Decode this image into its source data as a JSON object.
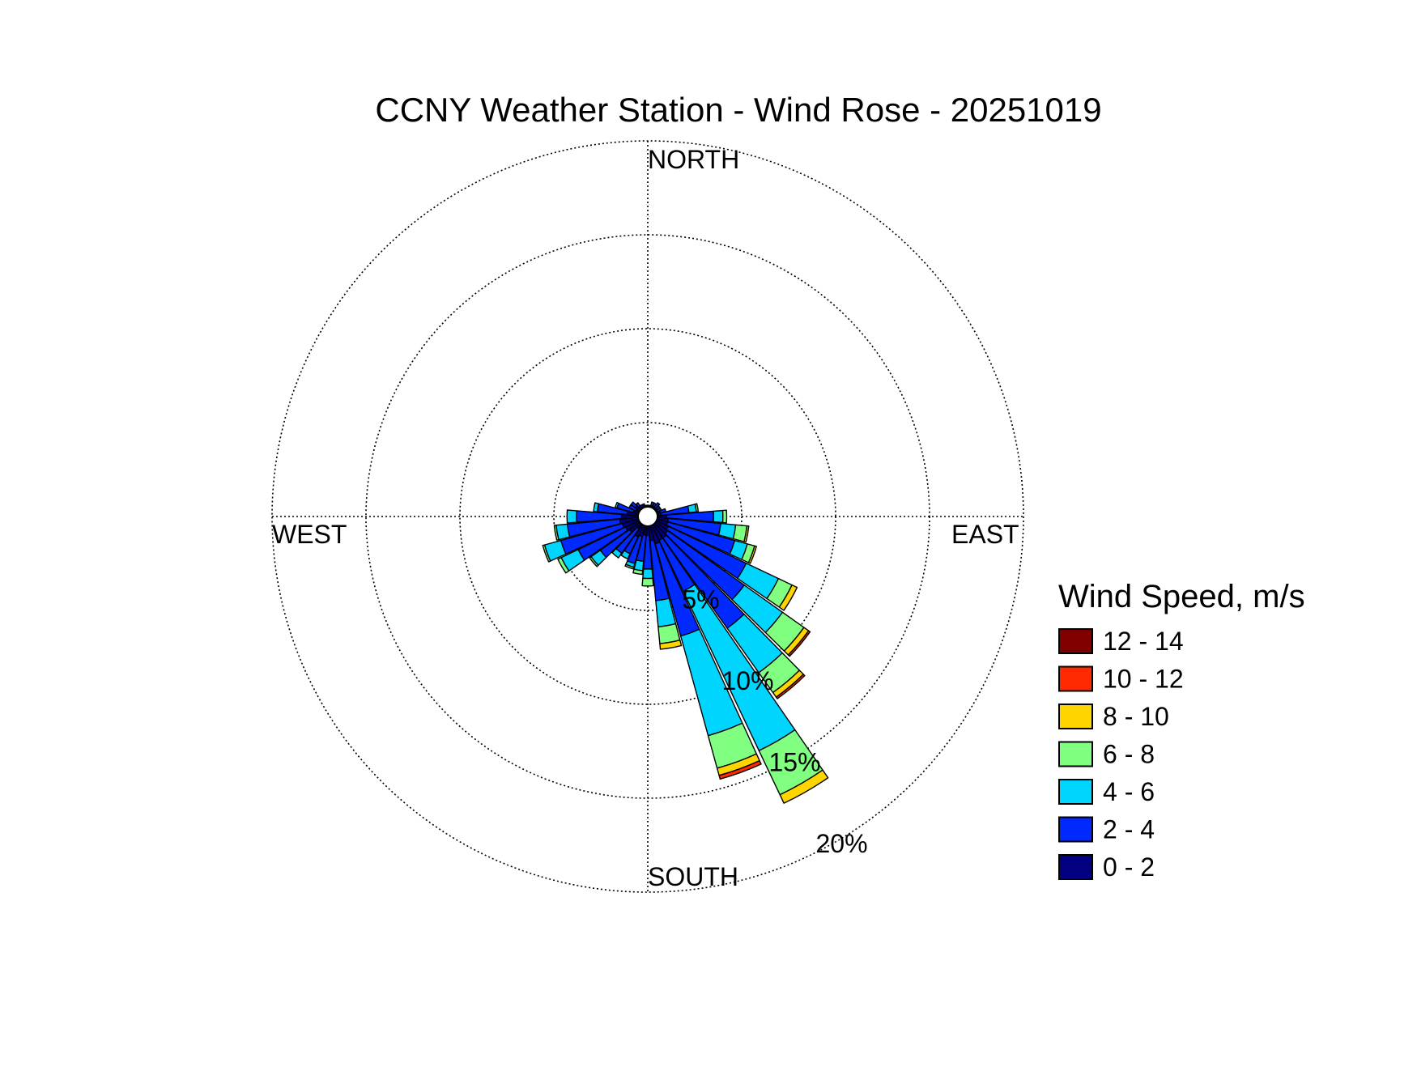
{
  "chart_data": {
    "type": "windrose",
    "title": "CCNY Weather Station - Wind Rose - 20251019",
    "directions_deg": [
      0,
      10,
      20,
      30,
      40,
      50,
      60,
      70,
      80,
      90,
      100,
      110,
      120,
      130,
      140,
      150,
      160,
      170,
      180,
      190,
      200,
      210,
      220,
      230,
      240,
      250,
      260,
      270,
      280,
      290,
      300,
      310,
      320,
      330,
      340,
      350
    ],
    "compass_labels": {
      "north": "NORTH",
      "east": "EAST",
      "south": "SOUTH",
      "west": "WEST"
    },
    "radial_ticks": [
      5,
      10,
      15,
      20
    ],
    "radial_tick_labels": [
      "5%",
      "10%",
      "15%",
      "20%"
    ],
    "rmax": 20,
    "legend": {
      "title": "Wind Speed, m/s",
      "bins": [
        {
          "label": "12 - 14",
          "color": "#800000"
        },
        {
          "label": "10 - 12",
          "color": "#ff2a00"
        },
        {
          "label": "8 - 10",
          "color": "#ffd500"
        },
        {
          "label": "6 - 8",
          "color": "#80ff80"
        },
        {
          "label": "4 - 6",
          "color": "#00d5ff"
        },
        {
          "label": "2 - 4",
          "color": "#0029ff"
        },
        {
          "label": "0 - 2",
          "color": "#000080"
        }
      ]
    },
    "speed_bin_order": [
      "0 - 2",
      "2 - 4",
      "4 - 6",
      "6 - 8",
      "8 - 10",
      "10 - 12",
      "12 - 14"
    ],
    "frequencies_pct": [
      [
        0.6,
        0,
        0,
        0,
        0,
        0,
        0
      ],
      [
        0.6,
        0,
        0,
        0,
        0,
        0,
        0
      ],
      [
        0.6,
        0.2,
        0,
        0,
        0,
        0,
        0
      ],
      [
        0.6,
        0.2,
        0,
        0,
        0,
        0,
        0
      ],
      [
        0.6,
        0.3,
        0,
        0,
        0,
        0,
        0
      ],
      [
        0.6,
        0.2,
        0,
        0,
        0,
        0,
        0
      ],
      [
        0.6,
        0.2,
        0,
        0,
        0,
        0,
        0
      ],
      [
        0.7,
        0.3,
        0,
        0,
        0,
        0,
        0
      ],
      [
        0.7,
        1.5,
        0.4,
        0.1,
        0,
        0,
        0
      ],
      [
        1.0,
        2.5,
        0.5,
        0.2,
        0,
        0,
        0
      ],
      [
        1.1,
        2.8,
        0.8,
        0.6,
        0.1,
        0,
        0
      ],
      [
        1.1,
        3.7,
        0.7,
        0.4,
        0.1,
        0,
        0
      ],
      [
        1.2,
        4.6,
        1.9,
        0.8,
        0.3,
        0,
        0
      ],
      [
        1.3,
        5.0,
        2.5,
        1.4,
        0.3,
        0.1,
        0
      ],
      [
        1.4,
        5.9,
        2.9,
        1.3,
        0.3,
        0.1,
        0
      ],
      [
        1.4,
        3.0,
        9.4,
        2.6,
        0.5,
        0,
        0
      ],
      [
        1.5,
        5.1,
        5.5,
        1.8,
        0.4,
        0.2,
        0
      ],
      [
        1.3,
        3.2,
        1.4,
        0.9,
        0.3,
        0,
        0
      ],
      [
        1.0,
        1.8,
        0.5,
        0.4,
        0,
        0,
        0
      ],
      [
        1.0,
        1.4,
        0.5,
        0.2,
        0,
        0,
        0
      ],
      [
        1.1,
        1.5,
        0.2,
        0.1,
        0,
        0,
        0
      ],
      [
        1.2,
        1.0,
        0.3,
        0,
        0,
        0,
        0
      ],
      [
        0.8,
        1.6,
        0.3,
        0,
        0,
        0,
        0
      ],
      [
        1.2,
        1.9,
        0.6,
        0.1,
        0,
        0,
        0
      ],
      [
        1.3,
        2.8,
        1.0,
        0.2,
        0,
        0,
        0
      ],
      [
        1.4,
        3.4,
        0.9,
        0.1,
        0,
        0,
        0
      ],
      [
        1.5,
        2.8,
        0.6,
        0.1,
        0,
        0,
        0
      ],
      [
        1.4,
        2.4,
        0.5,
        0,
        0,
        0,
        0
      ],
      [
        1.1,
        1.6,
        0.2,
        0,
        0,
        0,
        0
      ],
      [
        0.8,
        0.9,
        0.1,
        0,
        0,
        0,
        0
      ],
      [
        0.7,
        0.4,
        0,
        0,
        0,
        0,
        0
      ],
      [
        0.8,
        0.3,
        0,
        0,
        0,
        0,
        0
      ],
      [
        0.7,
        0.2,
        0,
        0,
        0,
        0,
        0
      ],
      [
        0.6,
        0.1,
        0,
        0,
        0,
        0,
        0
      ],
      [
        0.6,
        0.1,
        0,
        0,
        0,
        0,
        0
      ],
      [
        0.6,
        0,
        0,
        0,
        0,
        0,
        0
      ]
    ]
  }
}
